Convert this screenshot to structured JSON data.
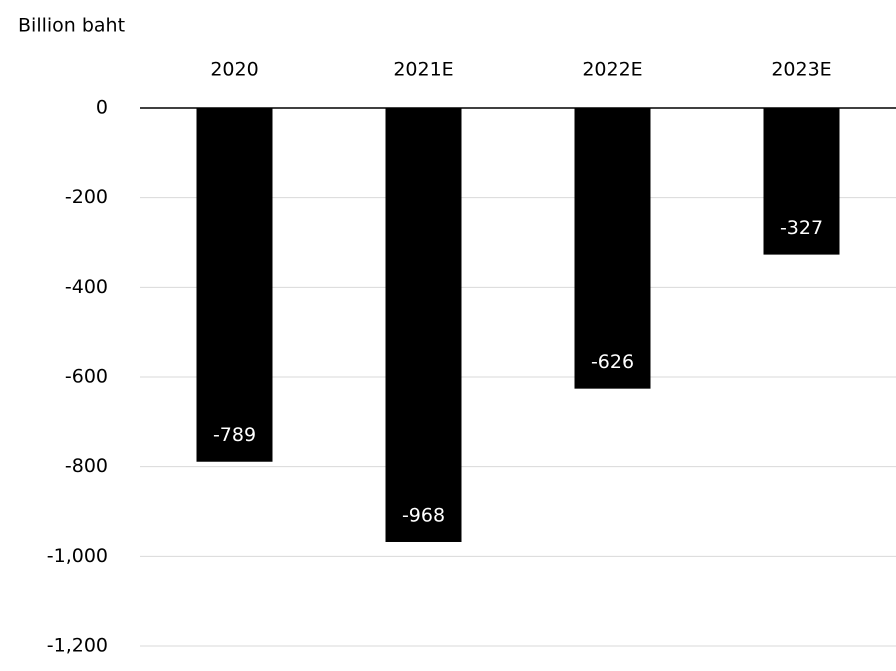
{
  "chart_data": {
    "type": "bar",
    "y_label": "Billion baht",
    "categories": [
      "2020",
      "2021E",
      "2022E",
      "2023E"
    ],
    "values": [
      -789,
      -968,
      -626,
      -327
    ],
    "color": "#000000",
    "ylim": [
      -1200,
      0
    ],
    "yticks": [
      0,
      -200,
      -400,
      -600,
      -800,
      {
        "value": -1000,
        "label": "-1,000"
      },
      {
        "value": -1200,
        "label": "-1,200"
      }
    ],
    "grid": true
  }
}
